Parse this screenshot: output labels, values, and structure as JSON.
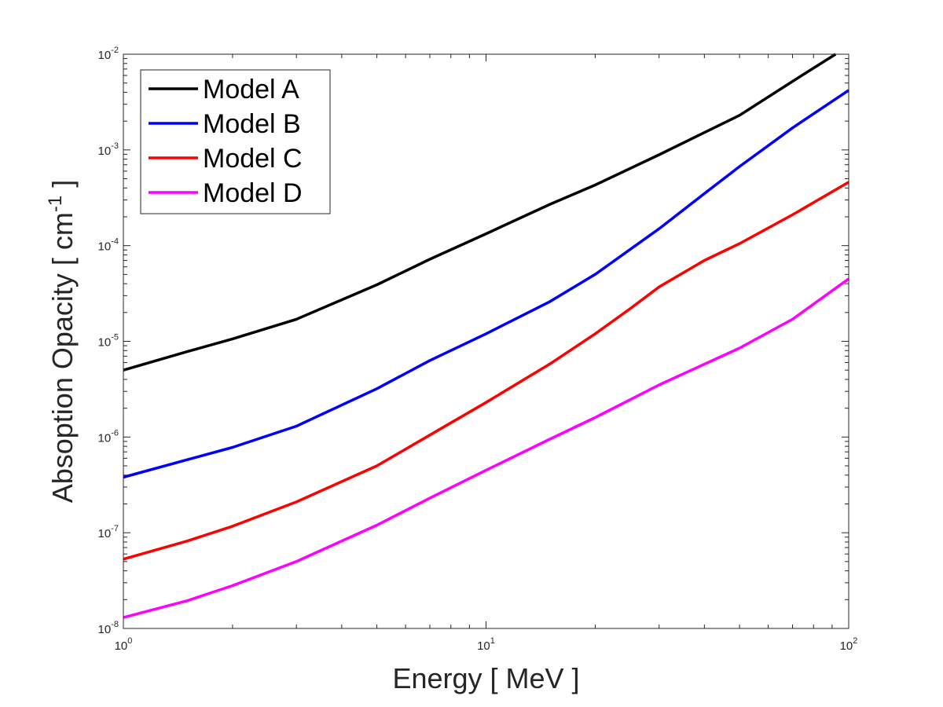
{
  "chart_data": {
    "type": "line",
    "title": "",
    "xlabel": "Energy [ MeV ]",
    "ylabel": "Absoption Opacity [ cm",
    "ylabel_superscript": "-1",
    "ylabel_suffix": " ]",
    "xscale": "log",
    "yscale": "log",
    "xlim": [
      1,
      100
    ],
    "ylim": [
      1e-08,
      0.01
    ],
    "x_ticks": [
      {
        "value": 1,
        "base": "10",
        "exp": "0"
      },
      {
        "value": 10,
        "base": "10",
        "exp": "1"
      },
      {
        "value": 100,
        "base": "10",
        "exp": "2"
      }
    ],
    "y_ticks": [
      {
        "value": 1e-08,
        "base": "10",
        "exp": "-8"
      },
      {
        "value": 1e-07,
        "base": "10",
        "exp": "-7"
      },
      {
        "value": 1e-06,
        "base": "10",
        "exp": "-6"
      },
      {
        "value": 1e-05,
        "base": "10",
        "exp": "-5"
      },
      {
        "value": 0.0001,
        "base": "10",
        "exp": "-4"
      },
      {
        "value": 0.001,
        "base": "10",
        "exp": "-3"
      },
      {
        "value": 0.01,
        "base": "10",
        "exp": "-2"
      }
    ],
    "grid": false,
    "legend_position": "top-left",
    "series": [
      {
        "name": "Model A",
        "color": "#000000",
        "x": [
          1,
          1.5,
          2,
          3,
          5,
          7,
          10,
          15,
          20,
          30,
          50,
          70,
          92
        ],
        "y": [
          5e-06,
          7.8e-06,
          1.06e-05,
          1.7e-05,
          3.9e-05,
          7.2e-05,
          0.000133,
          0.00027,
          0.00043,
          0.00089,
          0.0023,
          0.0052,
          0.01
        ]
      },
      {
        "name": "Model B",
        "color": "#0000ff",
        "x": [
          1,
          1.5,
          2,
          3,
          5,
          7,
          10,
          15,
          20,
          30,
          40,
          50,
          70,
          100
        ],
        "y": [
          3.8e-07,
          5.8e-07,
          7.8e-07,
          1.3e-06,
          3.2e-06,
          6.3e-06,
          1.2e-05,
          2.6e-05,
          5e-05,
          0.00015,
          0.00035,
          0.00067,
          0.0017,
          0.0042
        ]
      },
      {
        "name": "Model C",
        "color": "#ff0000",
        "x": [
          1,
          1.5,
          2,
          3,
          5,
          7,
          10,
          15,
          20,
          25,
          30,
          40,
          50,
          70,
          100
        ],
        "y": [
          5.3e-08,
          8.2e-08,
          1.17e-07,
          2.1e-07,
          5e-07,
          1.05e-06,
          2.3e-06,
          5.8e-06,
          1.2e-05,
          2.2e-05,
          3.7e-05,
          7e-05,
          0.000105,
          0.00021,
          0.00046
        ]
      },
      {
        "name": "Model D",
        "color": "#ff00ff",
        "x": [
          1,
          1.5,
          2,
          3,
          5,
          7,
          10,
          15,
          20,
          30,
          50,
          70,
          100
        ],
        "y": [
          1.3e-08,
          1.95e-08,
          2.8e-08,
          5e-08,
          1.2e-07,
          2.3e-07,
          4.5e-07,
          9.5e-07,
          1.6e-06,
          3.5e-06,
          8.5e-06,
          1.7e-05,
          4.5e-05
        ]
      }
    ]
  }
}
